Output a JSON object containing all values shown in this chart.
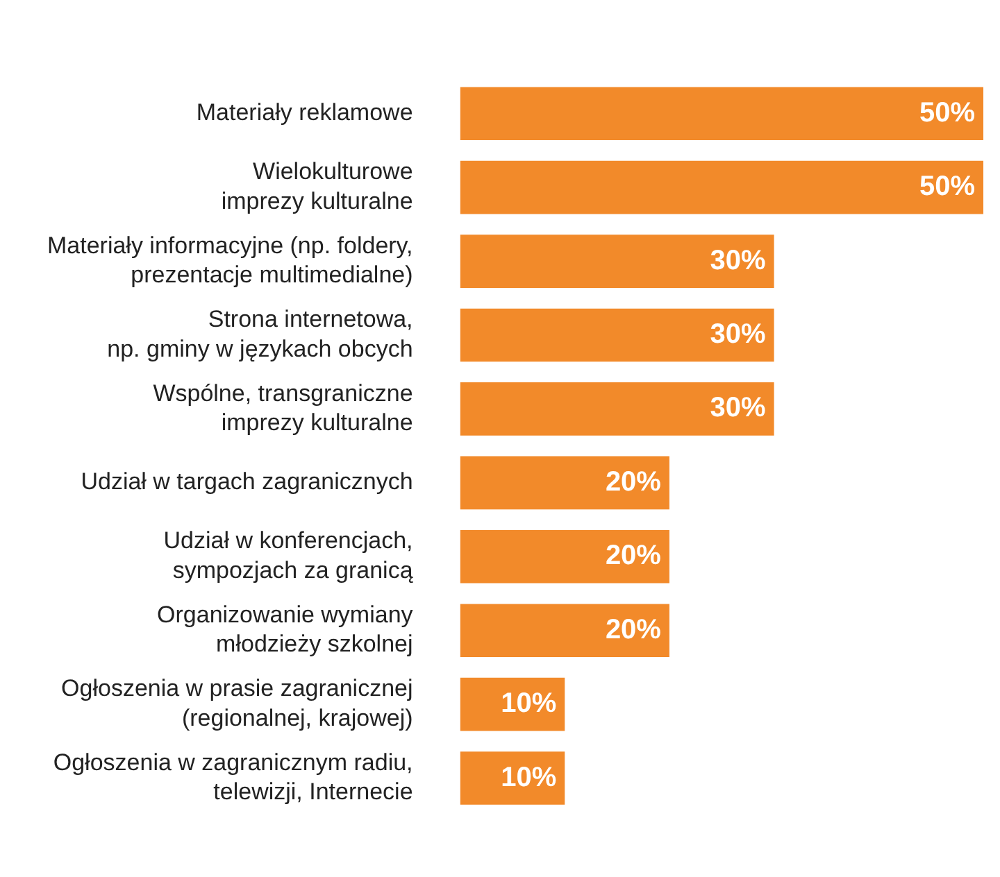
{
  "chart_data": {
    "type": "bar",
    "orientation": "horizontal",
    "categories": [
      "Materiały reklamowe",
      "Wielokulturowe\nimprezy kulturalne",
      "Materiały informacyjne (np. foldery,\nprezentacje multimedialne)",
      "Strona internetowa,\nnp. gminy w językach obcych",
      "Wspólne, transgraniczne\nimprezy kulturalne",
      "Udział w targach zagranicznych",
      "Udział w konferencjach,\nsympozjach za granicą",
      "Organizowanie wymiany\nmłodzieży szkolnej",
      "Ogłoszenia w prasie zagranicznej\n(regionalnej, krajowej)",
      "Ogłoszenia w zagranicznym radiu,\ntelewizji, Internecie"
    ],
    "values": [
      50,
      50,
      30,
      30,
      30,
      20,
      20,
      20,
      10,
      10
    ],
    "value_labels": [
      "50%",
      "50%",
      "30%",
      "30%",
      "30%",
      "20%",
      "20%",
      "20%",
      "10%",
      "10%"
    ],
    "color": "#f28a2a",
    "legend": false
  }
}
